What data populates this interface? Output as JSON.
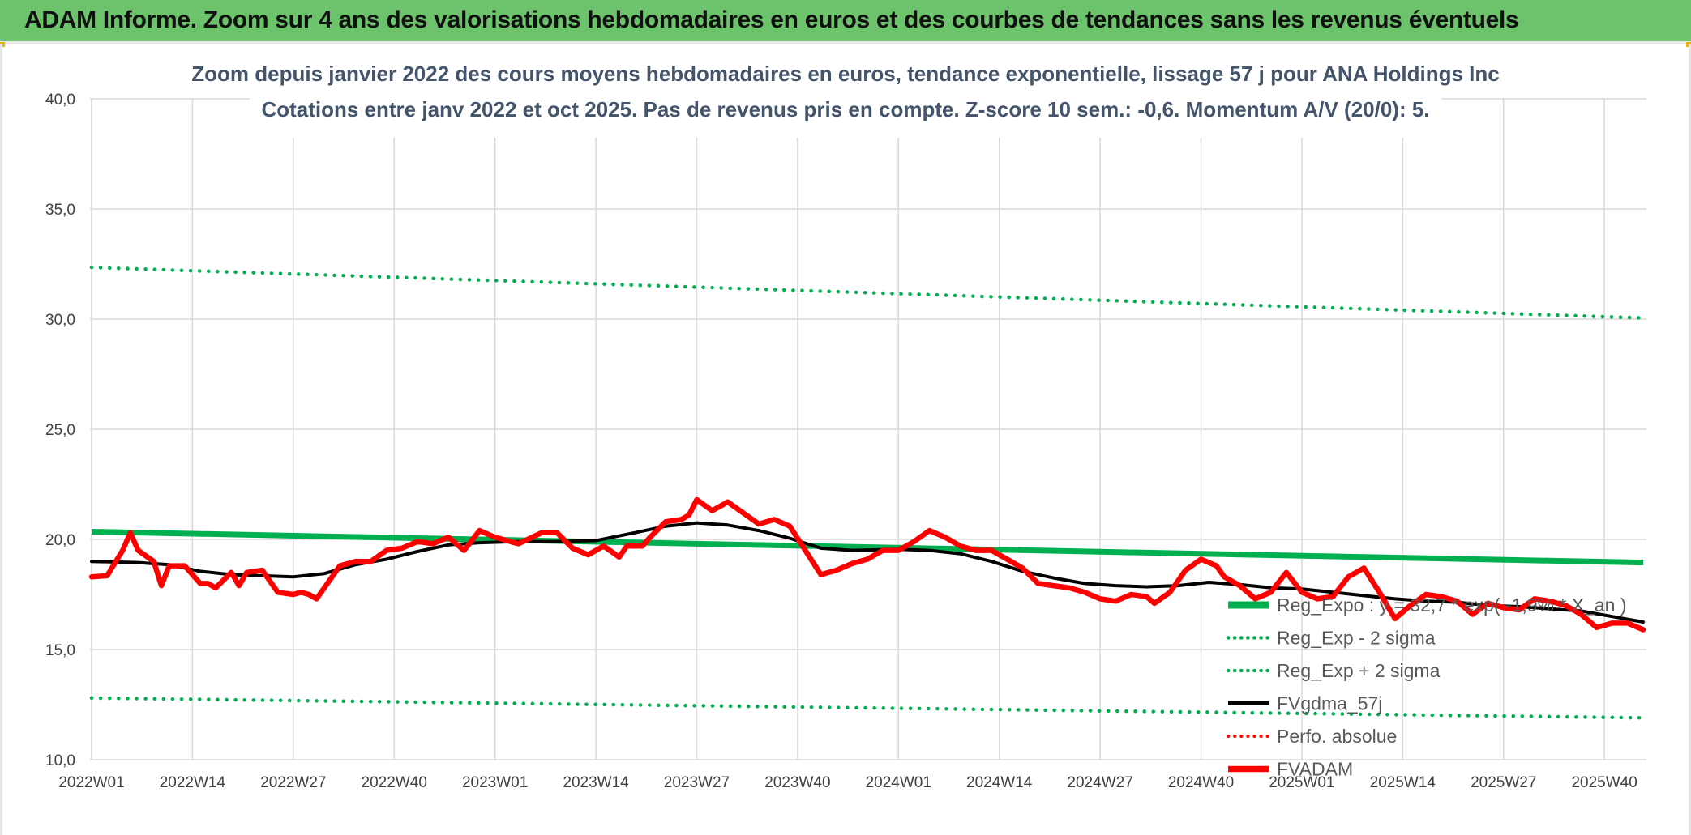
{
  "banner": {
    "title": "ADAM Informe. Zoom sur 4 ans des valorisations hebdomadaires en euros et des courbes de tendances sans les revenus éventuels"
  },
  "colors": {
    "banner": "#6cc36c",
    "trend": "#00b050",
    "sigma": "#00b050",
    "moving_average": "#000000",
    "perf_absolue": "#ff0000",
    "price": "#ff0000"
  },
  "chart_data": {
    "type": "line",
    "title": "Zoom depuis janvier 2022 des cours moyens hebdomadaires en euros, tendance exponentielle, lissage 57 j pour ANA Holdings Inc",
    "subtitle": "Cotations entre janv 2022 et oct 2025. Pas de revenus pris en compte. Z-score 10 sem.: -0,6. Momentum A/V (20/0): 5.",
    "xlabel": "",
    "ylabel": "",
    "ylim": [
      10,
      40
    ],
    "yticks": [
      "10,0",
      "15,0",
      "20,0",
      "25,0",
      "30,0",
      "35,0",
      "40,0"
    ],
    "x_tick_labels": [
      "2022W01",
      "2022W14",
      "2022W27",
      "2022W40",
      "2023W01",
      "2023W14",
      "2023W27",
      "2023W40",
      "2024W01",
      "2024W14",
      "2024W27",
      "2024W40",
      "2025W01",
      "2025W14",
      "2025W27",
      "2025W40"
    ],
    "x_tick_index": [
      0,
      13,
      26,
      39,
      52,
      65,
      78,
      91,
      104,
      117,
      130,
      143,
      156,
      169,
      182,
      195
    ],
    "n_weeks": 201,
    "grid": true,
    "legend_position": "bottom-right",
    "series": [
      {
        "name": "Reg_Expo : y = 32,7 * exp( -1,9% * X_an )",
        "style": "thick-solid",
        "x": [
          0,
          200
        ],
        "values": [
          20.35,
          18.95
        ]
      },
      {
        "name": "Reg_Exp - 2 sigma",
        "style": "dotted",
        "x": [
          0,
          200
        ],
        "values": [
          12.8,
          11.9
        ]
      },
      {
        "name": "Reg_Exp + 2 sigma",
        "style": "dotted",
        "x": [
          0,
          200
        ],
        "values": [
          32.35,
          30.05
        ]
      },
      {
        "name": "FVgdma_57j",
        "style": "solid",
        "x": [
          0,
          6,
          10,
          14,
          18,
          22,
          26,
          30,
          34,
          38,
          42,
          46,
          50,
          55,
          60,
          65,
          70,
          74,
          78,
          82,
          86,
          90,
          94,
          98,
          104,
          108,
          112,
          116,
          120,
          124,
          128,
          132,
          136,
          140,
          144,
          148,
          152,
          156,
          160,
          164,
          168,
          172,
          176,
          180,
          184,
          188,
          192,
          196,
          200
        ],
        "values": [
          19.0,
          18.95,
          18.85,
          18.55,
          18.4,
          18.35,
          18.3,
          18.45,
          18.85,
          19.1,
          19.45,
          19.75,
          19.85,
          19.9,
          19.9,
          19.95,
          20.3,
          20.6,
          20.75,
          20.65,
          20.4,
          20.05,
          19.6,
          19.5,
          19.55,
          19.5,
          19.35,
          19.0,
          18.55,
          18.25,
          18.0,
          17.9,
          17.85,
          17.9,
          18.05,
          17.95,
          17.8,
          17.75,
          17.6,
          17.45,
          17.3,
          17.2,
          17.15,
          17.0,
          16.95,
          16.85,
          16.75,
          16.5,
          16.25
        ]
      },
      {
        "name": "Perfo. absolue",
        "style": "dotted",
        "x": [],
        "values": []
      },
      {
        "name": "FVADAM",
        "style": "thick-solid",
        "x": [
          0,
          2,
          4,
          5,
          6,
          8,
          9,
          10,
          12,
          14,
          15,
          16,
          18,
          19,
          20,
          22,
          24,
          26,
          27,
          28,
          29,
          30,
          32,
          34,
          36,
          38,
          40,
          42,
          44,
          46,
          48,
          50,
          52,
          53,
          55,
          58,
          60,
          62,
          64,
          66,
          68,
          69,
          71,
          72,
          74,
          76,
          77,
          78,
          80,
          82,
          84,
          86,
          88,
          90,
          92,
          94,
          96,
          98,
          100,
          102,
          104,
          106,
          108,
          110,
          112,
          114,
          116,
          118,
          120,
          122,
          124,
          126,
          128,
          130,
          132,
          134,
          136,
          137,
          139,
          141,
          143,
          145,
          146,
          148,
          150,
          152,
          154,
          156,
          158,
          160,
          162,
          164,
          166,
          168,
          170,
          172,
          174,
          176,
          178,
          180,
          182,
          184,
          186,
          188,
          190,
          192,
          194,
          196,
          198,
          200
        ],
        "values": [
          18.3,
          18.35,
          19.5,
          20.3,
          19.5,
          19.0,
          17.9,
          18.8,
          18.8,
          18.0,
          18.0,
          17.8,
          18.5,
          17.9,
          18.5,
          18.6,
          17.6,
          17.5,
          17.6,
          17.5,
          17.3,
          17.8,
          18.8,
          19.0,
          19.0,
          19.5,
          19.6,
          19.9,
          19.8,
          20.1,
          19.5,
          20.4,
          20.1,
          20.0,
          19.8,
          20.3,
          20.3,
          19.6,
          19.3,
          19.7,
          19.2,
          19.7,
          19.7,
          20.1,
          20.8,
          20.9,
          21.1,
          21.8,
          21.3,
          21.7,
          21.2,
          20.7,
          20.9,
          20.6,
          19.5,
          18.4,
          18.6,
          18.9,
          19.1,
          19.5,
          19.5,
          19.9,
          20.4,
          20.1,
          19.7,
          19.5,
          19.5,
          19.1,
          18.7,
          18.0,
          17.9,
          17.8,
          17.6,
          17.3,
          17.2,
          17.5,
          17.4,
          17.1,
          17.6,
          18.6,
          19.1,
          18.8,
          18.3,
          17.9,
          17.3,
          17.6,
          18.5,
          17.6,
          17.3,
          17.4,
          18.3,
          18.7,
          17.6,
          16.4,
          17.0,
          17.5,
          17.4,
          17.2,
          16.6,
          17.1,
          16.9,
          16.8,
          17.3,
          17.2,
          17.0,
          16.6,
          16.0,
          16.2,
          16.2,
          15.9
        ]
      }
    ]
  }
}
